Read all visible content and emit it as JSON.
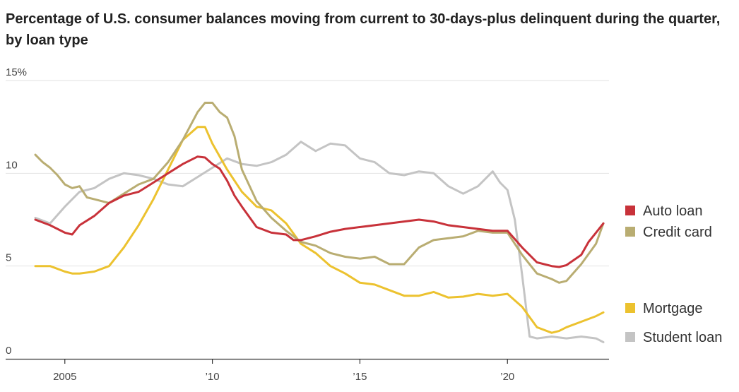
{
  "chart_data": {
    "type": "line",
    "title": "Percentage of U.S. consumer balances moving from current to 30-days-plus delinquent during the quarter, by loan type",
    "xlabel": "",
    "ylabel": "",
    "xlim": [
      2004.0,
      2023.25
    ],
    "ylim": [
      0,
      15
    ],
    "y_ticks": [
      {
        "value": 15,
        "label": "15%"
      },
      {
        "value": 10,
        "label": "10"
      },
      {
        "value": 5,
        "label": "5"
      },
      {
        "value": 0,
        "label": "0"
      }
    ],
    "x_ticks": [
      {
        "value": 2005,
        "label": "2005"
      },
      {
        "value": 2010,
        "label": "’10"
      },
      {
        "value": 2015,
        "label": "’15"
      },
      {
        "value": 2020,
        "label": "’20"
      }
    ],
    "grid": true,
    "legend_position": "right",
    "series": [
      {
        "name": "Auto loan",
        "color": "#c8323a",
        "points": [
          [
            2004.0,
            7.5
          ],
          [
            2004.5,
            7.2
          ],
          [
            2005.0,
            6.8
          ],
          [
            2005.25,
            6.7
          ],
          [
            2005.5,
            7.2
          ],
          [
            2006.0,
            7.7
          ],
          [
            2006.5,
            8.4
          ],
          [
            2007.0,
            8.8
          ],
          [
            2007.5,
            9.0
          ],
          [
            2008.0,
            9.5
          ],
          [
            2008.5,
            10.0
          ],
          [
            2009.0,
            10.5
          ],
          [
            2009.5,
            10.9
          ],
          [
            2009.75,
            10.85
          ],
          [
            2010.0,
            10.5
          ],
          [
            2010.25,
            10.25
          ],
          [
            2010.5,
            9.6
          ],
          [
            2010.75,
            8.8
          ],
          [
            2011.0,
            8.2
          ],
          [
            2011.5,
            7.1
          ],
          [
            2012.0,
            6.8
          ],
          [
            2012.5,
            6.7
          ],
          [
            2012.75,
            6.4
          ],
          [
            2013.0,
            6.4
          ],
          [
            2013.5,
            6.6
          ],
          [
            2014.0,
            6.85
          ],
          [
            2014.5,
            7.0
          ],
          [
            2015.0,
            7.1
          ],
          [
            2015.5,
            7.2
          ],
          [
            2016.0,
            7.3
          ],
          [
            2016.5,
            7.4
          ],
          [
            2017.0,
            7.5
          ],
          [
            2017.5,
            7.4
          ],
          [
            2018.0,
            7.2
          ],
          [
            2018.5,
            7.1
          ],
          [
            2019.0,
            7.0
          ],
          [
            2019.5,
            6.9
          ],
          [
            2020.0,
            6.9
          ],
          [
            2020.5,
            6.0
          ],
          [
            2021.0,
            5.2
          ],
          [
            2021.5,
            5.0
          ],
          [
            2021.75,
            4.95
          ],
          [
            2022.0,
            5.05
          ],
          [
            2022.5,
            5.6
          ],
          [
            2022.75,
            6.3
          ],
          [
            2023.0,
            6.8
          ],
          [
            2023.25,
            7.3
          ]
        ]
      },
      {
        "name": "Credit card",
        "color": "#b9ad72",
        "points": [
          [
            2004.0,
            11.0
          ],
          [
            2004.25,
            10.6
          ],
          [
            2004.5,
            10.3
          ],
          [
            2004.75,
            9.9
          ],
          [
            2005.0,
            9.4
          ],
          [
            2005.25,
            9.2
          ],
          [
            2005.5,
            9.3
          ],
          [
            2005.75,
            8.7
          ],
          [
            2006.0,
            8.6
          ],
          [
            2006.5,
            8.4
          ],
          [
            2007.0,
            8.9
          ],
          [
            2007.5,
            9.4
          ],
          [
            2008.0,
            9.7
          ],
          [
            2008.5,
            10.6
          ],
          [
            2009.0,
            11.8
          ],
          [
            2009.5,
            13.3
          ],
          [
            2009.75,
            13.8
          ],
          [
            2010.0,
            13.8
          ],
          [
            2010.25,
            13.3
          ],
          [
            2010.5,
            13.0
          ],
          [
            2010.75,
            12.0
          ],
          [
            2011.0,
            10.2
          ],
          [
            2011.5,
            8.5
          ],
          [
            2012.0,
            7.6
          ],
          [
            2012.5,
            6.9
          ],
          [
            2013.0,
            6.3
          ],
          [
            2013.5,
            6.1
          ],
          [
            2014.0,
            5.7
          ],
          [
            2014.5,
            5.5
          ],
          [
            2015.0,
            5.4
          ],
          [
            2015.5,
            5.5
          ],
          [
            2016.0,
            5.1
          ],
          [
            2016.5,
            5.1
          ],
          [
            2017.0,
            6.0
          ],
          [
            2017.5,
            6.4
          ],
          [
            2018.0,
            6.5
          ],
          [
            2018.5,
            6.6
          ],
          [
            2019.0,
            6.9
          ],
          [
            2019.5,
            6.8
          ],
          [
            2020.0,
            6.8
          ],
          [
            2020.5,
            5.6
          ],
          [
            2021.0,
            4.6
          ],
          [
            2021.5,
            4.3
          ],
          [
            2021.75,
            4.1
          ],
          [
            2022.0,
            4.2
          ],
          [
            2022.5,
            5.1
          ],
          [
            2023.0,
            6.2
          ],
          [
            2023.25,
            7.3
          ]
        ]
      },
      {
        "name": "Mortgage",
        "color": "#ecc22f",
        "points": [
          [
            2004.0,
            5.0
          ],
          [
            2004.5,
            5.0
          ],
          [
            2005.0,
            4.7
          ],
          [
            2005.25,
            4.6
          ],
          [
            2005.5,
            4.6
          ],
          [
            2006.0,
            4.7
          ],
          [
            2006.5,
            5.0
          ],
          [
            2007.0,
            6.0
          ],
          [
            2007.5,
            7.2
          ],
          [
            2008.0,
            8.6
          ],
          [
            2008.5,
            10.2
          ],
          [
            2009.0,
            11.8
          ],
          [
            2009.5,
            12.5
          ],
          [
            2009.75,
            12.5
          ],
          [
            2010.0,
            11.6
          ],
          [
            2010.5,
            10.2
          ],
          [
            2011.0,
            9.0
          ],
          [
            2011.5,
            8.2
          ],
          [
            2012.0,
            8.0
          ],
          [
            2012.5,
            7.3
          ],
          [
            2013.0,
            6.2
          ],
          [
            2013.5,
            5.7
          ],
          [
            2014.0,
            5.0
          ],
          [
            2014.5,
            4.6
          ],
          [
            2015.0,
            4.1
          ],
          [
            2015.5,
            4.0
          ],
          [
            2016.0,
            3.7
          ],
          [
            2016.5,
            3.4
          ],
          [
            2017.0,
            3.4
          ],
          [
            2017.5,
            3.6
          ],
          [
            2018.0,
            3.3
          ],
          [
            2018.5,
            3.35
          ],
          [
            2019.0,
            3.5
          ],
          [
            2019.5,
            3.4
          ],
          [
            2020.0,
            3.5
          ],
          [
            2020.5,
            2.8
          ],
          [
            2021.0,
            1.7
          ],
          [
            2021.5,
            1.4
          ],
          [
            2021.75,
            1.5
          ],
          [
            2022.0,
            1.7
          ],
          [
            2022.5,
            2.0
          ],
          [
            2023.0,
            2.3
          ],
          [
            2023.25,
            2.5
          ]
        ]
      },
      {
        "name": "Student loan",
        "color": "#c4c4c4",
        "points": [
          [
            2004.0,
            7.6
          ],
          [
            2004.5,
            7.3
          ],
          [
            2005.0,
            8.2
          ],
          [
            2005.5,
            9.0
          ],
          [
            2006.0,
            9.2
          ],
          [
            2006.5,
            9.7
          ],
          [
            2007.0,
            10.0
          ],
          [
            2007.5,
            9.9
          ],
          [
            2008.0,
            9.7
          ],
          [
            2008.5,
            9.4
          ],
          [
            2009.0,
            9.3
          ],
          [
            2009.5,
            9.8
          ],
          [
            2010.0,
            10.3
          ],
          [
            2010.5,
            10.8
          ],
          [
            2011.0,
            10.5
          ],
          [
            2011.5,
            10.4
          ],
          [
            2012.0,
            10.6
          ],
          [
            2012.5,
            11.0
          ],
          [
            2013.0,
            11.7
          ],
          [
            2013.5,
            11.2
          ],
          [
            2014.0,
            11.6
          ],
          [
            2014.5,
            11.5
          ],
          [
            2015.0,
            10.8
          ],
          [
            2015.5,
            10.6
          ],
          [
            2016.0,
            10.0
          ],
          [
            2016.5,
            9.9
          ],
          [
            2017.0,
            10.1
          ],
          [
            2017.5,
            10.0
          ],
          [
            2018.0,
            9.3
          ],
          [
            2018.5,
            8.9
          ],
          [
            2019.0,
            9.3
          ],
          [
            2019.5,
            10.1
          ],
          [
            2019.75,
            9.5
          ],
          [
            2020.0,
            9.1
          ],
          [
            2020.25,
            7.5
          ],
          [
            2020.5,
            4.5
          ],
          [
            2020.75,
            1.2
          ],
          [
            2021.0,
            1.1
          ],
          [
            2021.5,
            1.2
          ],
          [
            2022.0,
            1.1
          ],
          [
            2022.5,
            1.2
          ],
          [
            2023.0,
            1.1
          ],
          [
            2023.25,
            0.9
          ]
        ]
      }
    ],
    "legend": [
      {
        "label": "Auto loan",
        "color": "#c8323a"
      },
      {
        "label": "Credit card",
        "color": "#b9ad72"
      },
      {
        "label": "Mortgage",
        "color": "#ecc22f"
      },
      {
        "label": "Student loan",
        "color": "#c4c4c4"
      }
    ]
  }
}
